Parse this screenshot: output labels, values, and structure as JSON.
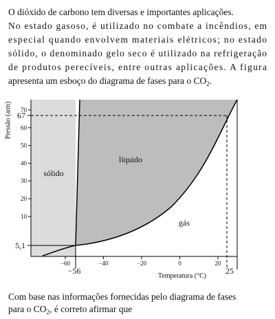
{
  "intro": {
    "lines": [
      "O dióxido de carbono tem diversas e importantes aplicações.",
      "No estado gasoso, é utilizado no combate a incêndios, em",
      "especial quando envolvem materiais elétricos; no estado",
      "sólido, o denominado gelo seco é utilizado na refrigeração",
      "de produtos perecíveis, entre outras aplicações. A figura"
    ],
    "last_line": [
      "apresenta um esboço do diagrama de fases para o CO",
      "2",
      "."
    ]
  },
  "figure": {
    "y_axis_label": "Pressão (atm)",
    "x_axis_label": "Temperatura (°C)",
    "y_ticks": [
      "70",
      "60",
      "50",
      "40",
      "30",
      "20",
      "10"
    ],
    "x_ticks": [
      "−60",
      "−40",
      "−20",
      "0",
      "20"
    ],
    "y_marks": [
      "67",
      "5,1"
    ],
    "x_marks": [
      "−56",
      "25"
    ],
    "regions": [
      "sólido",
      "líquido",
      "gás"
    ]
  },
  "question": {
    "lines": [
      [
        "Com base nas informações fornecidas pelo diagrama de fases"
      ],
      [
        "para o CO",
        "2",
        ", é correto afirmar que"
      ]
    ]
  }
}
